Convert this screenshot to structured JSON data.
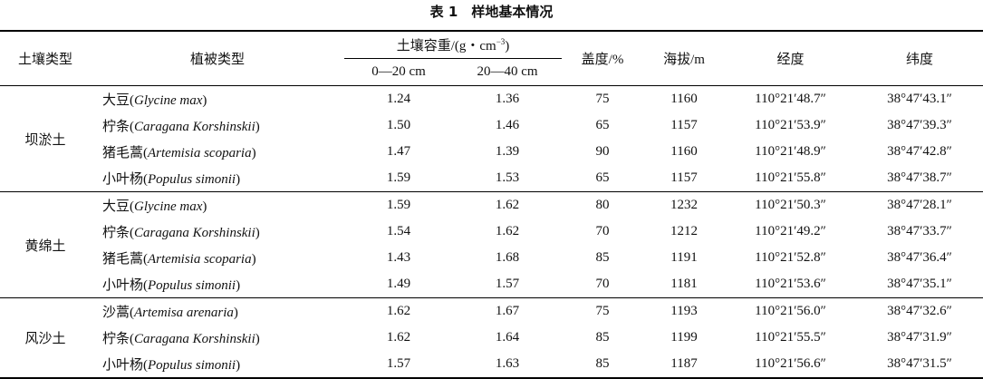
{
  "title": "表 1　样地基本情况",
  "header": {
    "soil_type": "土壤类型",
    "vegetation": "植被类型",
    "bulk_density": [
      "土壤容重/(g・cm",
      "−3",
      ")"
    ],
    "depth_0_20": "0—20 cm",
    "depth_20_40": "20—40 cm",
    "cover": "盖度/%",
    "altitude": "海拔/m",
    "longitude": "经度",
    "latitude": "纬度"
  },
  "groups": [
    {
      "soil": "坝淤土",
      "rows": [
        {
          "plant": [
            "大豆(",
            "Glycine max",
            ")"
          ],
          "bd1": "1.24",
          "bd2": "1.36",
          "cover": "75",
          "alt": "1160",
          "lon": "110°21′48.7″",
          "lat": "38°47′43.1″"
        },
        {
          "plant": [
            "柠条(",
            "Caragana Korshinskii",
            ")"
          ],
          "bd1": "1.50",
          "bd2": "1.46",
          "cover": "65",
          "alt": "1157",
          "lon": "110°21′53.9″",
          "lat": "38°47′39.3″"
        },
        {
          "plant": [
            "猪毛蒿(",
            "Artemisia scoparia",
            ")"
          ],
          "bd1": "1.47",
          "bd2": "1.39",
          "cover": "90",
          "alt": "1160",
          "lon": "110°21′48.9″",
          "lat": "38°47′42.8″"
        },
        {
          "plant": [
            "小叶杨(",
            "Populus simonii",
            ")"
          ],
          "bd1": "1.59",
          "bd2": "1.53",
          "cover": "65",
          "alt": "1157",
          "lon": "110°21′55.8″",
          "lat": "38°47′38.7″"
        }
      ]
    },
    {
      "soil": "黄绵土",
      "rows": [
        {
          "plant": [
            "大豆(",
            "Glycine max",
            ")"
          ],
          "bd1": "1.59",
          "bd2": "1.62",
          "cover": "80",
          "alt": "1232",
          "lon": "110°21′50.3″",
          "lat": "38°47′28.1″"
        },
        {
          "plant": [
            "柠条(",
            "Caragana Korshinskii",
            ")"
          ],
          "bd1": "1.54",
          "bd2": "1.62",
          "cover": "70",
          "alt": "1212",
          "lon": "110°21′49.2″",
          "lat": "38°47′33.7″"
        },
        {
          "plant": [
            "猪毛蒿(",
            "Artemisia scoparia",
            ")"
          ],
          "bd1": "1.43",
          "bd2": "1.68",
          "cover": "85",
          "alt": "1191",
          "lon": "110°21′52.8″",
          "lat": "38°47′36.4″"
        },
        {
          "plant": [
            "小叶杨(",
            "Populus simonii",
            ")"
          ],
          "bd1": "1.49",
          "bd2": "1.57",
          "cover": "70",
          "alt": "1181",
          "lon": "110°21′53.6″",
          "lat": "38°47′35.1″"
        }
      ]
    },
    {
      "soil": "风沙土",
      "rows": [
        {
          "plant": [
            "沙蒿(",
            "Artemisa arenaria",
            ")"
          ],
          "bd1": "1.62",
          "bd2": "1.67",
          "cover": "75",
          "alt": "1193",
          "lon": "110°21′56.0″",
          "lat": "38°47′32.6″"
        },
        {
          "plant": [
            "柠条(",
            "Caragana Korshinskii",
            ")"
          ],
          "bd1": "1.62",
          "bd2": "1.64",
          "cover": "85",
          "alt": "1199",
          "lon": "110°21′55.5″",
          "lat": "38°47′31.9″"
        },
        {
          "plant": [
            "小叶杨(",
            "Populus simonii",
            ")"
          ],
          "bd1": "1.57",
          "bd2": "1.63",
          "cover": "85",
          "alt": "1187",
          "lon": "110°21′56.6″",
          "lat": "38°47′31.5″"
        }
      ]
    }
  ]
}
